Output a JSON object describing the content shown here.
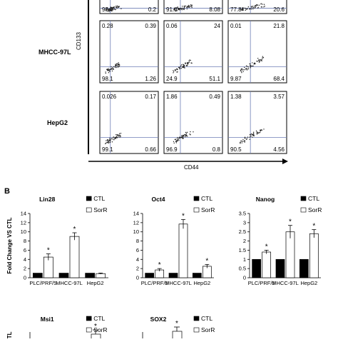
{
  "panel_b_letter": "B",
  "flow_rows": [
    {
      "label": "",
      "quadrants": [
        [
          "",
          "",
          "98.8",
          "0.2"
        ],
        [
          "",
          "",
          "91.8",
          "8.08"
        ],
        [
          "",
          "",
          "77.8",
          "20.6"
        ]
      ]
    },
    {
      "label": "MHCC-97L",
      "quadrants": [
        [
          "0.28",
          "0.39",
          "98.1",
          "1.26"
        ],
        [
          "0.06",
          "24",
          "24.9",
          "51.1"
        ],
        [
          "0.01",
          "21.8",
          "9.87",
          "68.4"
        ]
      ]
    },
    {
      "label": "HepG2",
      "quadrants": [
        [
          "0.026",
          "0.17",
          "99.1",
          "0.66"
        ],
        [
          "1.86",
          "0.49",
          "96.9",
          "0.8"
        ],
        [
          "1.38",
          "3.57",
          "90.5",
          "4.56"
        ]
      ]
    }
  ],
  "flow_axes": {
    "y_label": "CD133",
    "x_label": "CD44"
  },
  "colors": {
    "ctl": "#000000",
    "sorr": "#ffffff",
    "gate": "#6f7fb6",
    "dots": "#222222"
  },
  "chart_data": [
    {
      "type": "bar",
      "title": "Lin28",
      "categories": [
        "PLC/PRF/5",
        "MHCC-97L",
        "HepG2"
      ],
      "series": [
        {
          "name": "CTL",
          "values": [
            1,
            1,
            1
          ],
          "errors": [
            0,
            0,
            0
          ]
        },
        {
          "name": "SorR",
          "values": [
            4.5,
            9,
            0.9
          ],
          "errors": [
            0.7,
            0.8,
            0.12
          ]
        }
      ],
      "significant": [
        true,
        true,
        false
      ],
      "ylabel": "Fold Change VS CTL",
      "ylim": [
        0,
        14
      ],
      "yticks": [
        "0",
        "2",
        "4",
        "6",
        "8",
        "10",
        "12",
        "14"
      ]
    },
    {
      "type": "bar",
      "title": "Oct4",
      "categories": [
        "PLC/PRF/5",
        "MHCC-97L",
        "HepG2"
      ],
      "series": [
        {
          "name": "CTL",
          "values": [
            1,
            1,
            1
          ],
          "errors": [
            0,
            0,
            0
          ]
        },
        {
          "name": "SorR",
          "values": [
            1.7,
            11.7,
            2.5
          ],
          "errors": [
            0.3,
            1.0,
            0.4
          ]
        }
      ],
      "significant": [
        true,
        true,
        true
      ],
      "ylabel": "",
      "ylim": [
        0,
        14
      ],
      "yticks": [
        "0",
        "2",
        "4",
        "6",
        "8",
        "10",
        "12",
        "14"
      ]
    },
    {
      "type": "bar",
      "title": "Nanog",
      "categories": [
        "PLC/PRF/5",
        "MHCC-97L",
        "HepG2"
      ],
      "series": [
        {
          "name": "CTL",
          "values": [
            1,
            1,
            1
          ],
          "errors": [
            0,
            0,
            0
          ]
        },
        {
          "name": "SorR",
          "values": [
            1.4,
            2.5,
            2.4
          ],
          "errors": [
            0.1,
            0.35,
            0.22
          ]
        }
      ],
      "significant": [
        true,
        true,
        true
      ],
      "ylabel": "",
      "ylim": [
        0,
        3.5
      ],
      "yticks": [
        "0",
        "0.5",
        "1",
        "1.5",
        "2",
        "2.5",
        "3",
        "3.5"
      ]
    },
    {
      "type": "bar",
      "title": "Msi1",
      "categories": [],
      "series": [
        {
          "name": "CTL",
          "values": []
        },
        {
          "name": "SorR",
          "values": []
        }
      ],
      "ylabel": "CTL"
    },
    {
      "type": "bar",
      "title": "SOX2",
      "categories": [],
      "series": [
        {
          "name": "CTL",
          "values": []
        },
        {
          "name": "SorR",
          "values": []
        }
      ],
      "ylabel": ""
    }
  ]
}
